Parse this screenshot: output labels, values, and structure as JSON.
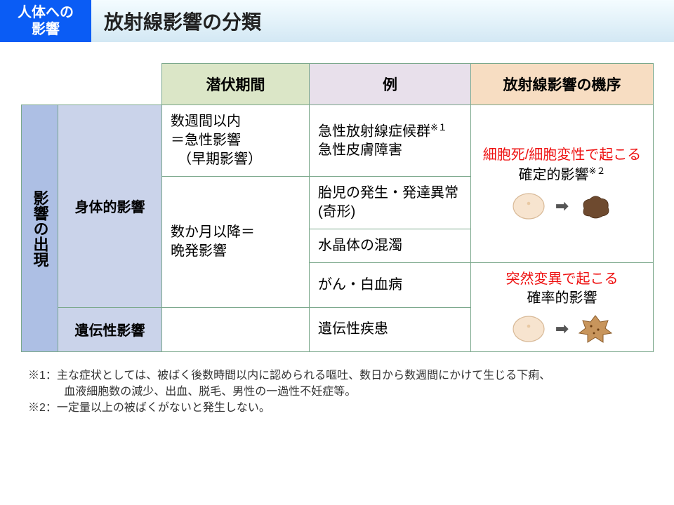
{
  "header": {
    "badge": "人体への\n影響",
    "title": "放射線影響の分類"
  },
  "columns": {
    "latency": "潜伏期間",
    "example": "例",
    "mechanism": "放射線影響の機序"
  },
  "side": {
    "main": "影響の出現",
    "physical": "身体的影響",
    "hereditary": "遺伝性影響"
  },
  "rows": {
    "acute": {
      "latency_l1": "数週間以内",
      "latency_l2": "＝急性影響",
      "latency_l3": "（早期影響）",
      "example_l1": "急性放射線症候群",
      "example_sup1": "※１",
      "example_l2": "急性皮膚障害"
    },
    "late_latency_l1": "数か月以降＝",
    "late_latency_l2": "晩発影響",
    "fetal": "胎児の発生・発達異常(奇形)",
    "lens": "水晶体の混濁",
    "cancer": "がん・白血病",
    "hereditary": "遺伝性疾患"
  },
  "mech": {
    "det_l1": "細胞死/細胞変性で起こる",
    "det_l2": "確定的影響",
    "det_sup": "※２",
    "stoch_l1": "突然変異で起こる",
    "stoch_l2": "確率的影響"
  },
  "notes": {
    "n1a": "※1：主な症状としては、被ばく後数時間以内に認められる嘔吐、数日から数週間にかけて生じる下痢、",
    "n1b": "血液細胞数の減少、出血、脱毛、男性の一過性不妊症等。",
    "n2": "※2：一定量以上の被ばくがないと発生しない。"
  },
  "colors": {
    "badge_bg": "#0a5cf5",
    "border": "#7ba88c",
    "h_latency": "#dbe6c7",
    "h_example": "#e8e0eb",
    "h_mech": "#f7ddc2",
    "side_main": "#adbfe4",
    "side_sub": "#cad3ea",
    "red": "#e11",
    "cell_healthy": "#f7e4cf",
    "cell_healthy_stroke": "#d8b997",
    "cell_dead": "#6e4a2f",
    "cell_mutant": "#c8955c",
    "cell_mutant_stroke": "#8a5a28"
  },
  "widths": {
    "col_side_main": 52,
    "col_side_sub": 148,
    "col_latency": 210,
    "col_example": 230,
    "col_mech": 260
  }
}
